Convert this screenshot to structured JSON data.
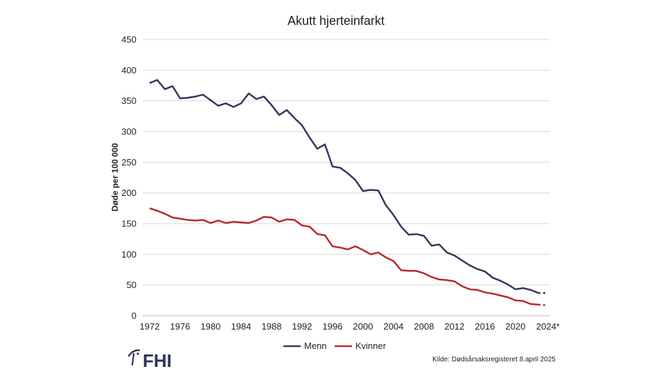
{
  "chart_data": {
    "type": "line",
    "title": "Akutt hjerteinfarkt",
    "xlabel": "",
    "ylabel": "Døde per 100 000",
    "ylim": [
      0,
      450
    ],
    "yticks": [
      0,
      50,
      100,
      150,
      200,
      250,
      300,
      350,
      400,
      450
    ],
    "x": [
      1972,
      1973,
      1974,
      1975,
      1976,
      1977,
      1978,
      1979,
      1980,
      1981,
      1982,
      1983,
      1984,
      1985,
      1986,
      1987,
      1988,
      1989,
      1990,
      1991,
      1992,
      1993,
      1994,
      1995,
      1996,
      1997,
      1998,
      1999,
      2000,
      2001,
      2002,
      2003,
      2004,
      2005,
      2006,
      2007,
      2008,
      2009,
      2010,
      2011,
      2012,
      2013,
      2014,
      2015,
      2016,
      2017,
      2018,
      2019,
      2020,
      2021,
      2022,
      2023,
      2024
    ],
    "xticks": [
      "1972",
      "1976",
      "1980",
      "1984",
      "1988",
      "1992",
      "1996",
      "2000",
      "2004",
      "2008",
      "2012",
      "2016",
      "2020",
      "2024*"
    ],
    "xtick_values": [
      1972,
      1976,
      1980,
      1984,
      1988,
      1992,
      1996,
      2000,
      2004,
      2008,
      2012,
      2016,
      2020,
      2024
    ],
    "provisional_from": 2023,
    "series": [
      {
        "name": "Menn",
        "color": "#34375c",
        "values": [
          379,
          384,
          369,
          374,
          354,
          355,
          357,
          360,
          351,
          342,
          346,
          340,
          346,
          362,
          353,
          357,
          343,
          327,
          335,
          322,
          310,
          290,
          272,
          279,
          243,
          241,
          232,
          221,
          203,
          205,
          204,
          180,
          164,
          145,
          132,
          133,
          130,
          114,
          116,
          103,
          98,
          90,
          82,
          76,
          72,
          62,
          57,
          51,
          43,
          45,
          42,
          37,
          37
        ]
      },
      {
        "name": "Kvinner",
        "color": "#b8282f",
        "values": [
          175,
          171,
          166,
          160,
          158,
          156,
          155,
          156,
          151,
          155,
          151,
          153,
          152,
          151,
          155,
          161,
          160,
          153,
          157,
          156,
          147,
          145,
          133,
          131,
          113,
          111,
          108,
          113,
          107,
          100,
          103,
          95,
          89,
          74,
          73,
          73,
          69,
          63,
          59,
          58,
          56,
          48,
          43,
          42,
          38,
          36,
          33,
          30,
          25,
          24,
          19,
          18,
          17
        ]
      }
    ],
    "legend_position": "bottom-center",
    "grid": true
  },
  "logo": {
    "text": "FHI"
  },
  "source": "Kilde: Dødsårsaksregisteret 8.april 2025"
}
